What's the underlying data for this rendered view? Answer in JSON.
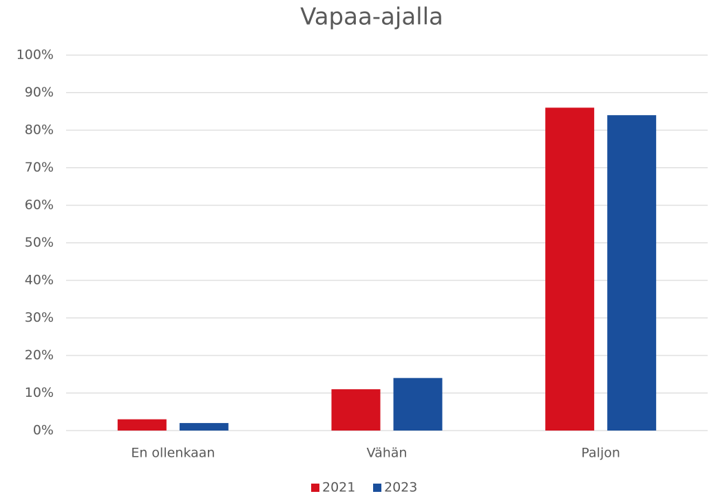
{
  "chart_data": {
    "type": "bar",
    "title": "Vapaa-ajalla",
    "categories": [
      "En ollenkaan",
      "Vähän",
      "Paljon"
    ],
    "series": [
      {
        "name": "2021",
        "color": "#d6111e",
        "values": [
          3,
          11,
          86
        ]
      },
      {
        "name": "2023",
        "color": "#1a4f9c",
        "values": [
          2,
          14,
          84
        ]
      }
    ],
    "ylim": [
      0,
      100
    ],
    "yticks": [
      {
        "value": 0,
        "label": "0%"
      },
      {
        "value": 10,
        "label": "10%"
      },
      {
        "value": 20,
        "label": "20%"
      },
      {
        "value": 30,
        "label": "30%"
      },
      {
        "value": 40,
        "label": "40%"
      },
      {
        "value": 50,
        "label": "50%"
      },
      {
        "value": 60,
        "label": "60%"
      },
      {
        "value": 70,
        "label": "70%"
      },
      {
        "value": 80,
        "label": "80%"
      },
      {
        "value": 90,
        "label": "90%"
      },
      {
        "value": 100,
        "label": "100%"
      }
    ],
    "grid": true,
    "legend": "bottom"
  }
}
